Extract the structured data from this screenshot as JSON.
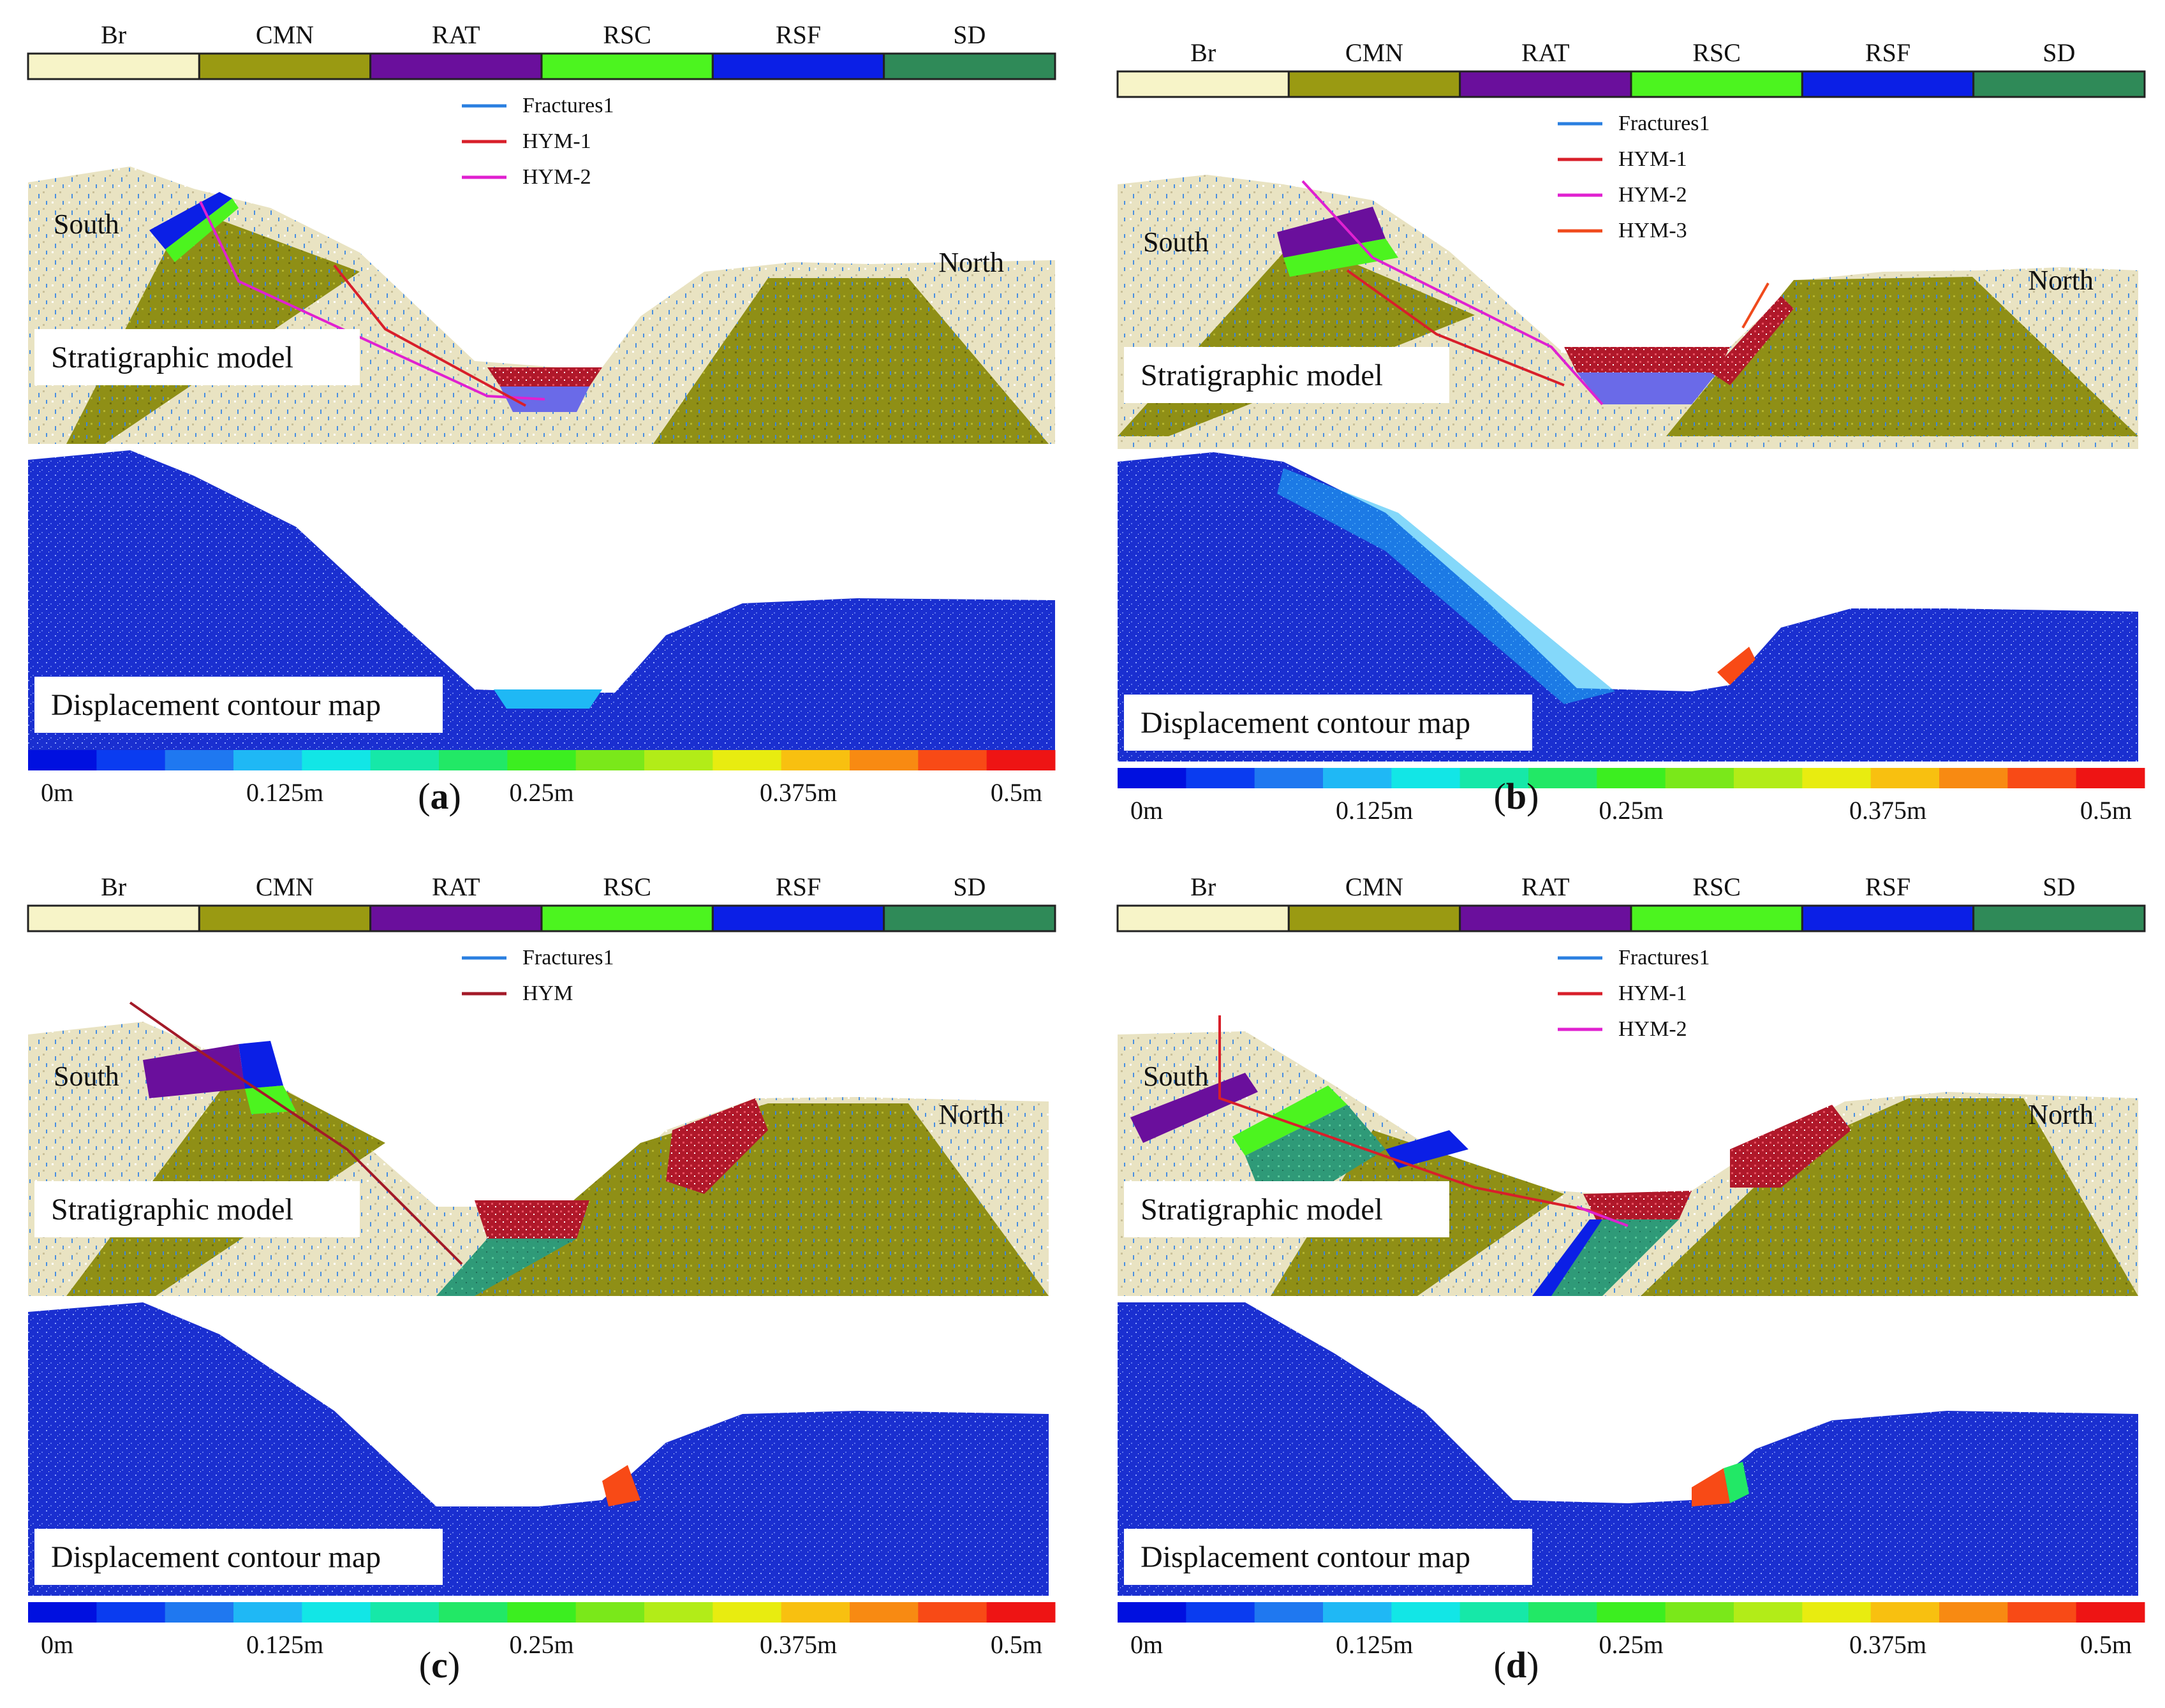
{
  "layers": [
    {
      "name": "Br",
      "color": "#f7f4c8"
    },
    {
      "name": "CMN",
      "color": "#9a9a12"
    },
    {
      "name": "RAT",
      "color": "#6a0f9c"
    },
    {
      "name": "RSC",
      "color": "#4cf41f"
    },
    {
      "name": "RSF",
      "color": "#0b1fe6"
    },
    {
      "name": "SD",
      "color": "#2f8a58"
    }
  ],
  "colorbar": {
    "colors": [
      "#0010e0",
      "#0a3cf0",
      "#1f78f0",
      "#1fb8f5",
      "#12e6e6",
      "#16e8a8",
      "#22e866",
      "#3cee20",
      "#7ae81a",
      "#b2ec18",
      "#e8ec10",
      "#f8c010",
      "#f88a12",
      "#f84a16",
      "#ee1414"
    ],
    "ticks": [
      "0m",
      "0.125m",
      "0.25m",
      "0.375m",
      "0.5m"
    ]
  },
  "labels": {
    "south": "South",
    "north": "North",
    "strat": "Stratigraphic model",
    "disp": "Displacement contour map"
  },
  "panels": [
    {
      "id": "a",
      "caption_open": "(",
      "caption_letter": "a",
      "caption_close": ")",
      "legend": [
        {
          "label": "Fractures1",
          "color": "#2a7fe0"
        },
        {
          "label": "HYM-1",
          "color": "#d81f2a"
        },
        {
          "label": "HYM-2",
          "color": "#e021d0"
        }
      ]
    },
    {
      "id": "b",
      "caption_open": "(",
      "caption_letter": "b",
      "caption_close": ")",
      "legend": [
        {
          "label": "Fractures1",
          "color": "#2a7fe0"
        },
        {
          "label": "HYM-1",
          "color": "#d81f2a"
        },
        {
          "label": "HYM-2",
          "color": "#e021d0"
        },
        {
          "label": "HYM-3",
          "color": "#f04a1c"
        }
      ]
    },
    {
      "id": "c",
      "caption_open": "(",
      "caption_letter": "c",
      "caption_close": ")",
      "legend": [
        {
          "label": "Fractures1",
          "color": "#2a7fe0"
        },
        {
          "label": "HYM",
          "color": "#a31a28"
        }
      ]
    },
    {
      "id": "d",
      "caption_open": "(",
      "caption_letter": "d",
      "caption_close": ")",
      "legend": [
        {
          "label": "Fractures1",
          "color": "#2a7fe0"
        },
        {
          "label": "HYM-1",
          "color": "#d81f2a"
        },
        {
          "label": "HYM-2",
          "color": "#e021d0"
        }
      ]
    }
  ]
}
